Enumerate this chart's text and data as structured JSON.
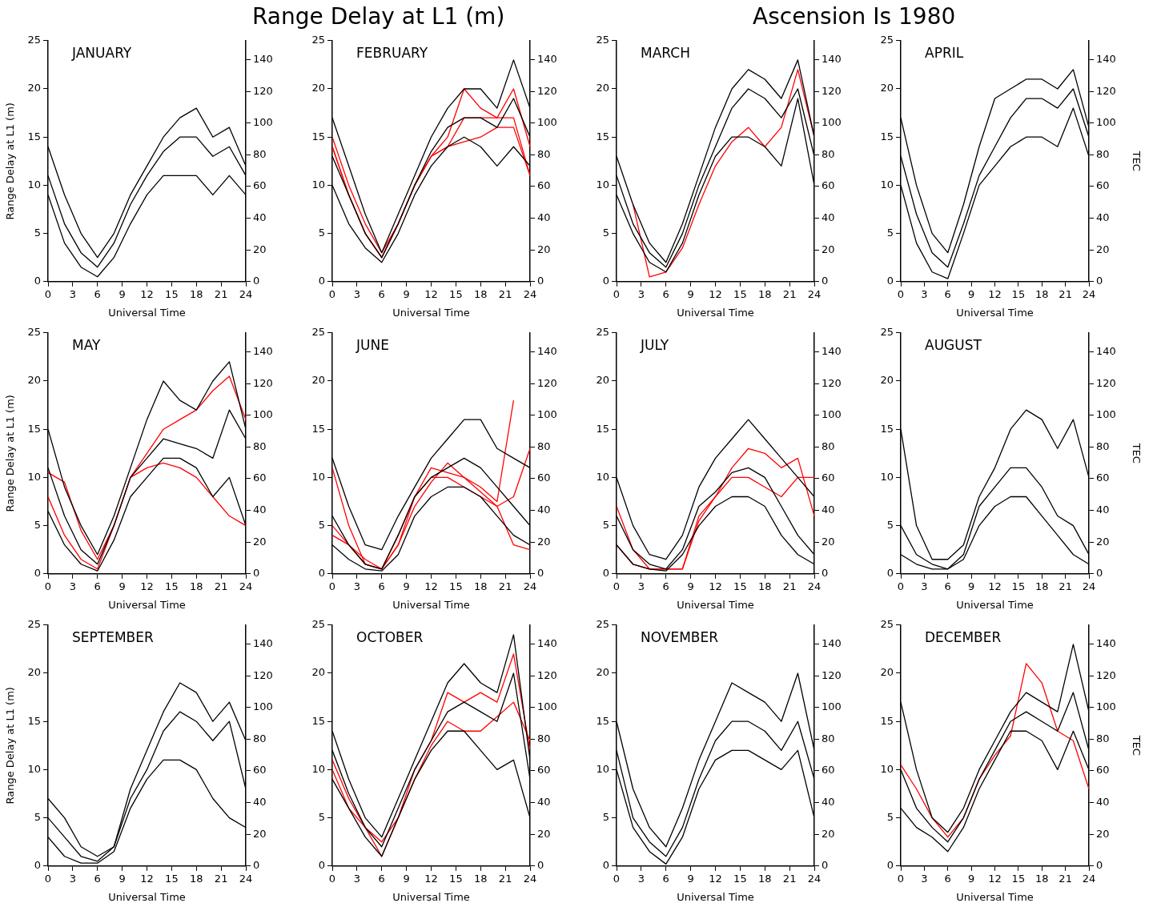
{
  "chart_data": [
    {
      "type": "line",
      "title": "JANUARY",
      "annotations": [
        "Range Delay at L1 (m)",
        "Ascension Is 1980"
      ],
      "xlabel": "Universal Time",
      "ylabel": "Range Delay at L1 (m)",
      "x": [
        0,
        2,
        4,
        6,
        8,
        10,
        12,
        14,
        16,
        18,
        20,
        22,
        24
      ],
      "xlim": [
        0,
        24
      ],
      "xticks": [
        0,
        3,
        6,
        9,
        12,
        15,
        18,
        21,
        24
      ],
      "ylim": [
        0,
        25
      ],
      "yticks": [
        0,
        5,
        10,
        15,
        20,
        25
      ],
      "y2lim": [
        0,
        152
      ],
      "y2ticks": [
        0,
        20,
        40,
        60,
        80,
        100,
        120,
        140
      ],
      "grid": false,
      "legend": false,
      "marker": "none",
      "line_style": "solid",
      "series": [
        {
          "color": "#000000",
          "values": [
            14,
            9,
            5,
            2.5,
            5,
            9,
            12,
            15,
            17,
            18,
            15,
            16,
            12
          ]
        },
        {
          "color": "#000000",
          "values": [
            11,
            6,
            3,
            1.5,
            4,
            8,
            11,
            13.5,
            15,
            15,
            13,
            14,
            11
          ]
        },
        {
          "color": "#000000",
          "values": [
            9,
            4,
            1.5,
            0.5,
            2.5,
            6,
            9,
            11,
            11,
            11,
            9,
            11,
            9
          ]
        }
      ]
    },
    {
      "type": "line",
      "title": "FEBRUARY",
      "xlabel": "Universal Time",
      "x": [
        0,
        2,
        4,
        6,
        8,
        10,
        12,
        14,
        16,
        18,
        20,
        22,
        24
      ],
      "xlim": [
        0,
        24
      ],
      "xticks": [
        0,
        3,
        6,
        9,
        12,
        15,
        18,
        21,
        24
      ],
      "ylim": [
        0,
        25
      ],
      "yticks": [
        0,
        5,
        10,
        15,
        20,
        25
      ],
      "y2lim": [
        0,
        152
      ],
      "y2ticks": [
        0,
        20,
        40,
        60,
        80,
        100,
        120,
        140
      ],
      "grid": false,
      "legend": false,
      "marker": "none",
      "line_style": "solid",
      "series": [
        {
          "color": "#000000",
          "values": [
            17,
            12,
            7,
            3,
            7,
            11,
            15,
            18,
            20,
            20,
            18,
            23,
            18
          ]
        },
        {
          "color": "#000000",
          "values": [
            13,
            9,
            5,
            2.5,
            6,
            10,
            13.5,
            16,
            17,
            17,
            16,
            19,
            15
          ]
        },
        {
          "color": "#000000",
          "values": [
            10,
            6,
            3.5,
            2,
            5,
            9,
            12,
            14,
            15,
            14,
            12,
            14,
            12
          ]
        },
        {
          "color": "#ff0000",
          "values": [
            15,
            10,
            6,
            3,
            6,
            10,
            13,
            15,
            20,
            18,
            17,
            17,
            11
          ]
        },
        {
          "color": "#ff0000",
          "values": [
            14,
            9,
            5,
            2.5,
            6,
            10,
            13,
            14,
            17,
            17,
            17,
            20,
            14
          ]
        },
        {
          "color": "#ff0000",
          "values": [
            14,
            9,
            5,
            2.5,
            6,
            10,
            13,
            14,
            14.5,
            15,
            16,
            16,
            11
          ]
        }
      ]
    },
    {
      "type": "line",
      "title": "MARCH",
      "xlabel": "Universal Time",
      "x": [
        0,
        2,
        4,
        6,
        8,
        10,
        12,
        14,
        16,
        18,
        20,
        22,
        24
      ],
      "xlim": [
        0,
        24
      ],
      "xticks": [
        0,
        3,
        6,
        9,
        12,
        15,
        18,
        21,
        24
      ],
      "ylim": [
        0,
        25
      ],
      "yticks": [
        0,
        5,
        10,
        15,
        20,
        25
      ],
      "y2lim": [
        0,
        152
      ],
      "y2ticks": [
        0,
        20,
        40,
        60,
        80,
        100,
        120,
        140
      ],
      "grid": false,
      "legend": false,
      "marker": "none",
      "line_style": "solid",
      "series": [
        {
          "color": "#000000",
          "values": [
            13,
            8,
            4,
            2,
            6,
            11,
            16,
            20,
            22,
            21,
            19,
            23,
            15
          ]
        },
        {
          "color": "#000000",
          "values": [
            11,
            6,
            3,
            1.5,
            5,
            10,
            14,
            18,
            20,
            19,
            17,
            20,
            13
          ]
        },
        {
          "color": "#000000",
          "values": [
            9,
            5,
            2,
            1,
            4,
            9,
            13,
            15,
            15,
            14,
            12,
            19,
            10
          ]
        },
        {
          "color": "#ff0000",
          "values": [
            null,
            8,
            0.5,
            1,
            3.5,
            8,
            12,
            14.5,
            16,
            14,
            16,
            22,
            15
          ]
        }
      ]
    },
    {
      "type": "line",
      "title": "APRIL",
      "xlabel": "Universal Time",
      "y2label": "TEC",
      "x": [
        0,
        2,
        4,
        6,
        8,
        10,
        12,
        14,
        16,
        18,
        20,
        22,
        24
      ],
      "xlim": [
        0,
        24
      ],
      "xticks": [
        0,
        3,
        6,
        9,
        12,
        15,
        18,
        21,
        24
      ],
      "ylim": [
        0,
        25
      ],
      "yticks": [
        0,
        5,
        10,
        15,
        20,
        25
      ],
      "y2lim": [
        0,
        152
      ],
      "y2ticks": [
        0,
        20,
        40,
        60,
        80,
        100,
        120,
        140
      ],
      "grid": false,
      "legend": false,
      "marker": "none",
      "line_style": "solid",
      "series": [
        {
          "color": "#000000",
          "values": [
            17,
            10,
            5,
            3,
            8,
            14,
            19,
            20,
            21,
            21,
            20,
            22,
            16
          ]
        },
        {
          "color": "#000000",
          "values": [
            13,
            7,
            3,
            1.5,
            6,
            11,
            14,
            17,
            19,
            19,
            18,
            20,
            15
          ]
        },
        {
          "color": "#000000",
          "values": [
            10,
            4,
            1,
            0.3,
            5,
            10,
            12,
            14,
            15,
            15,
            14,
            18,
            13
          ]
        }
      ]
    },
    {
      "type": "line",
      "title": "MAY",
      "xlabel": "Universal Time",
      "ylabel": "Range Delay at L1 (m)",
      "x": [
        0,
        2,
        4,
        6,
        8,
        10,
        12,
        14,
        16,
        18,
        20,
        22,
        24
      ],
      "xlim": [
        0,
        24
      ],
      "xticks": [
        0,
        3,
        6,
        9,
        12,
        15,
        18,
        21,
        24
      ],
      "ylim": [
        0,
        25
      ],
      "yticks": [
        0,
        5,
        10,
        15,
        20,
        25
      ],
      "y2lim": [
        0,
        152
      ],
      "y2ticks": [
        0,
        20,
        40,
        60,
        80,
        100,
        120,
        140
      ],
      "grid": false,
      "legend": false,
      "marker": "none",
      "line_style": "solid",
      "series": [
        {
          "color": "#000000",
          "values": [
            15,
            9,
            5,
            2,
            6,
            11,
            16,
            20,
            18,
            17,
            20,
            22,
            15
          ]
        },
        {
          "color": "#000000",
          "values": [
            11,
            6,
            2.5,
            1,
            5,
            10,
            12,
            14,
            13.5,
            13,
            12,
            17,
            14
          ]
        },
        {
          "color": "#000000",
          "values": [
            6.5,
            3,
            1,
            0.3,
            3.5,
            8,
            10,
            12,
            12,
            11,
            8,
            10,
            5
          ]
        },
        {
          "color": "#ff0000",
          "values": [
            10.5,
            9.5,
            4.5,
            1.5,
            5,
            10,
            12.5,
            15,
            16,
            17,
            19,
            20.5,
            16
          ]
        },
        {
          "color": "#ff0000",
          "values": [
            8,
            4,
            1.5,
            0.5,
            5,
            10,
            11,
            11.5,
            11,
            10,
            8,
            6,
            5
          ]
        }
      ]
    },
    {
      "type": "line",
      "title": "JUNE",
      "xlabel": "Universal Time",
      "x": [
        0,
        2,
        4,
        6,
        8,
        10,
        12,
        14,
        16,
        18,
        20,
        22,
        24
      ],
      "xlim": [
        0,
        24
      ],
      "xticks": [
        0,
        3,
        6,
        9,
        12,
        15,
        18,
        21,
        24
      ],
      "ylim": [
        0,
        25
      ],
      "yticks": [
        0,
        5,
        10,
        15,
        20,
        25
      ],
      "y2lim": [
        0,
        152
      ],
      "y2ticks": [
        0,
        20,
        40,
        60,
        80,
        100,
        120,
        140
      ],
      "grid": false,
      "legend": false,
      "marker": "none",
      "line_style": "solid",
      "series": [
        {
          "color": "#000000",
          "values": [
            12,
            7,
            3,
            2.5,
            6,
            9,
            12,
            14,
            16,
            16,
            13,
            12,
            11
          ]
        },
        {
          "color": "#000000",
          "values": [
            6,
            3,
            1,
            0.5,
            4,
            8,
            10,
            11,
            12,
            11,
            9,
            7,
            5
          ]
        },
        {
          "color": "#000000",
          "values": [
            3,
            1.5,
            0.5,
            0.3,
            2,
            6,
            8,
            9,
            9,
            8,
            6,
            4,
            3
          ]
        },
        {
          "color": "#ff0000",
          "values": [
            11,
            5,
            1,
            0.5,
            4,
            8,
            11,
            10.5,
            10,
            9,
            7.5,
            18,
            null
          ]
        },
        {
          "color": "#ff0000",
          "values": [
            4,
            3,
            1.5,
            0.5,
            3,
            8,
            10,
            10,
            9,
            8,
            7,
            3,
            2.5
          ]
        },
        {
          "color": "#ff0000",
          "values": [
            5,
            3,
            1,
            0.5,
            3,
            7,
            9.5,
            11.5,
            10,
            8.5,
            7,
            8,
            13
          ]
        }
      ]
    },
    {
      "type": "line",
      "title": "JULY",
      "xlabel": "Universal Time",
      "x": [
        0,
        2,
        4,
        6,
        8,
        10,
        12,
        14,
        16,
        18,
        20,
        22,
        24
      ],
      "xlim": [
        0,
        24
      ],
      "xticks": [
        0,
        3,
        6,
        9,
        12,
        15,
        18,
        21,
        24
      ],
      "ylim": [
        0,
        25
      ],
      "yticks": [
        0,
        5,
        10,
        15,
        20,
        25
      ],
      "y2lim": [
        0,
        152
      ],
      "y2ticks": [
        0,
        20,
        40,
        60,
        80,
        100,
        120,
        140
      ],
      "grid": false,
      "legend": false,
      "marker": "none",
      "line_style": "solid",
      "series": [
        {
          "color": "#000000",
          "values": [
            10,
            5,
            2,
            1.5,
            4,
            9,
            12,
            14,
            16,
            14,
            12,
            10,
            8
          ]
        },
        {
          "color": "#000000",
          "values": [
            6,
            2.5,
            1,
            0.5,
            2.5,
            7,
            8.5,
            10.5,
            11,
            10,
            7,
            4,
            2
          ]
        },
        {
          "color": "#000000",
          "values": [
            3,
            1,
            0.5,
            0.3,
            2,
            5,
            7,
            8,
            8,
            7,
            4,
            2,
            1
          ]
        },
        {
          "color": "#ff0000",
          "values": [
            7,
            2.5,
            0.5,
            0.5,
            0.5,
            6,
            8,
            11,
            13,
            12.5,
            11,
            12,
            6
          ]
        },
        {
          "color": "#ff0000",
          "values": [
            3,
            1,
            0.5,
            0.5,
            0.5,
            5.5,
            8,
            10,
            10,
            9,
            8,
            10,
            10
          ]
        }
      ]
    },
    {
      "type": "line",
      "title": "AUGUST",
      "xlabel": "Universal Time",
      "y2label": "TEC",
      "x": [
        0,
        2,
        4,
        6,
        8,
        10,
        12,
        14,
        16,
        18,
        20,
        22,
        24
      ],
      "xlim": [
        0,
        24
      ],
      "xticks": [
        0,
        3,
        6,
        9,
        12,
        15,
        18,
        21,
        24
      ],
      "ylim": [
        0,
        25
      ],
      "yticks": [
        0,
        5,
        10,
        15,
        20,
        25
      ],
      "y2lim": [
        0,
        152
      ],
      "y2ticks": [
        0,
        20,
        40,
        60,
        80,
        100,
        120,
        140
      ],
      "grid": false,
      "legend": false,
      "marker": "none",
      "line_style": "solid",
      "series": [
        {
          "color": "#000000",
          "values": [
            15,
            5,
            1.5,
            1.5,
            3,
            8,
            11,
            15,
            17,
            16,
            13,
            16,
            10
          ]
        },
        {
          "color": "#000000",
          "values": [
            5,
            2,
            1,
            0.5,
            2,
            7,
            9,
            11,
            11,
            9,
            6,
            5,
            2
          ]
        },
        {
          "color": "#000000",
          "values": [
            2,
            1,
            0.5,
            0.5,
            1.5,
            5,
            7,
            8,
            8,
            6,
            4,
            2,
            1
          ]
        }
      ]
    },
    {
      "type": "line",
      "title": "SEPTEMBER",
      "xlabel": "Universal Time",
      "ylabel": "Range Delay at L1 (m)",
      "x": [
        0,
        2,
        4,
        6,
        8,
        10,
        12,
        14,
        16,
        18,
        20,
        22,
        24
      ],
      "xlim": [
        0,
        24
      ],
      "xticks": [
        0,
        3,
        6,
        9,
        12,
        15,
        18,
        21,
        24
      ],
      "ylim": [
        0,
        25
      ],
      "yticks": [
        0,
        5,
        10,
        15,
        20,
        25
      ],
      "y2lim": [
        0,
        152
      ],
      "y2ticks": [
        0,
        20,
        40,
        60,
        80,
        100,
        120,
        140
      ],
      "grid": false,
      "legend": false,
      "marker": "none",
      "line_style": "solid",
      "series": [
        {
          "color": "#000000",
          "values": [
            7,
            5,
            2,
            1,
            2,
            8,
            12,
            16,
            19,
            18,
            15,
            17,
            13
          ]
        },
        {
          "color": "#000000",
          "values": [
            5,
            3,
            1,
            0.5,
            2,
            7,
            10,
            14,
            16,
            15,
            13,
            15,
            8
          ]
        },
        {
          "color": "#000000",
          "values": [
            3,
            1,
            0.3,
            0.3,
            1.5,
            6,
            9,
            11,
            11,
            10,
            7,
            5,
            4
          ]
        }
      ]
    },
    {
      "type": "line",
      "title": "OCTOBER",
      "xlabel": "Universal Time",
      "x": [
        0,
        2,
        4,
        6,
        8,
        10,
        12,
        14,
        16,
        18,
        20,
        22,
        24
      ],
      "xlim": [
        0,
        24
      ],
      "xticks": [
        0,
        3,
        6,
        9,
        12,
        15,
        18,
        21,
        24
      ],
      "ylim": [
        0,
        25
      ],
      "yticks": [
        0,
        5,
        10,
        15,
        20,
        25
      ],
      "y2lim": [
        0,
        152
      ],
      "y2ticks": [
        0,
        20,
        40,
        60,
        80,
        100,
        120,
        140
      ],
      "grid": false,
      "legend": false,
      "marker": "none",
      "line_style": "solid",
      "series": [
        {
          "color": "#000000",
          "values": [
            14,
            9,
            5,
            3,
            7,
            11,
            15,
            19,
            21,
            19,
            18,
            24,
            11
          ]
        },
        {
          "color": "#000000",
          "values": [
            12,
            7.5,
            4,
            2,
            6,
            10,
            13,
            16,
            17,
            16,
            15,
            20,
            9
          ]
        },
        {
          "color": "#000000",
          "values": [
            9,
            6,
            3,
            1,
            5,
            9,
            12,
            14,
            14,
            12,
            10,
            11,
            5
          ]
        },
        {
          "color": "#ff0000",
          "values": [
            10,
            6,
            4,
            2.5,
            5,
            10,
            13,
            18,
            17,
            18,
            17,
            22,
            12
          ]
        },
        {
          "color": "#ff0000",
          "values": [
            11,
            7,
            4,
            1,
            5,
            9,
            12.5,
            15,
            14,
            14,
            15.5,
            17,
            13
          ]
        }
      ]
    },
    {
      "type": "line",
      "title": "NOVEMBER",
      "xlabel": "Universal Time",
      "x": [
        0,
        2,
        4,
        6,
        8,
        10,
        12,
        14,
        16,
        18,
        20,
        22,
        24
      ],
      "xlim": [
        0,
        24
      ],
      "xticks": [
        0,
        3,
        6,
        9,
        12,
        15,
        18,
        21,
        24
      ],
      "ylim": [
        0,
        25
      ],
      "yticks": [
        0,
        5,
        10,
        15,
        20,
        25
      ],
      "y2lim": [
        0,
        152
      ],
      "y2ticks": [
        0,
        20,
        40,
        60,
        80,
        100,
        120,
        140
      ],
      "grid": false,
      "legend": false,
      "marker": "none",
      "line_style": "solid",
      "series": [
        {
          "color": "#000000",
          "values": [
            15,
            8,
            4,
            2,
            6,
            11,
            15,
            19,
            18,
            17,
            15,
            20,
            12
          ]
        },
        {
          "color": "#000000",
          "values": [
            12,
            5,
            2.5,
            1,
            4,
            9,
            13,
            15,
            15,
            14,
            12,
            15,
            9
          ]
        },
        {
          "color": "#000000",
          "values": [
            10,
            4,
            1.5,
            0.2,
            3,
            8,
            11,
            12,
            12,
            11,
            10,
            12,
            5
          ]
        }
      ]
    },
    {
      "type": "line",
      "title": "DECEMBER",
      "xlabel": "Universal Time",
      "y2label": "TEC",
      "x": [
        0,
        2,
        4,
        6,
        8,
        10,
        12,
        14,
        16,
        18,
        20,
        22,
        24
      ],
      "xlim": [
        0,
        24
      ],
      "xticks": [
        0,
        3,
        6,
        9,
        12,
        15,
        18,
        21,
        24
      ],
      "ylim": [
        0,
        25
      ],
      "yticks": [
        0,
        5,
        10,
        15,
        20,
        25
      ],
      "y2lim": [
        0,
        152
      ],
      "y2ticks": [
        0,
        20,
        40,
        60,
        80,
        100,
        120,
        140
      ],
      "grid": false,
      "legend": false,
      "marker": "none",
      "line_style": "solid",
      "series": [
        {
          "color": "#000000",
          "values": [
            17,
            10,
            5,
            3.5,
            6,
            10,
            13,
            16,
            18,
            17,
            16,
            23,
            16
          ]
        },
        {
          "color": "#000000",
          "values": [
            10,
            6,
            4,
            2.5,
            5,
            9,
            12,
            15,
            16,
            15,
            14,
            18,
            12
          ]
        },
        {
          "color": "#000000",
          "values": [
            6,
            4,
            3,
            1.5,
            4,
            8,
            11,
            14,
            14,
            13,
            10,
            14,
            10
          ]
        },
        {
          "color": "#ff0000",
          "values": [
            10.5,
            8,
            5,
            3,
            5,
            9,
            11.5,
            13.5,
            21,
            19,
            14,
            13,
            8
          ]
        }
      ]
    }
  ]
}
